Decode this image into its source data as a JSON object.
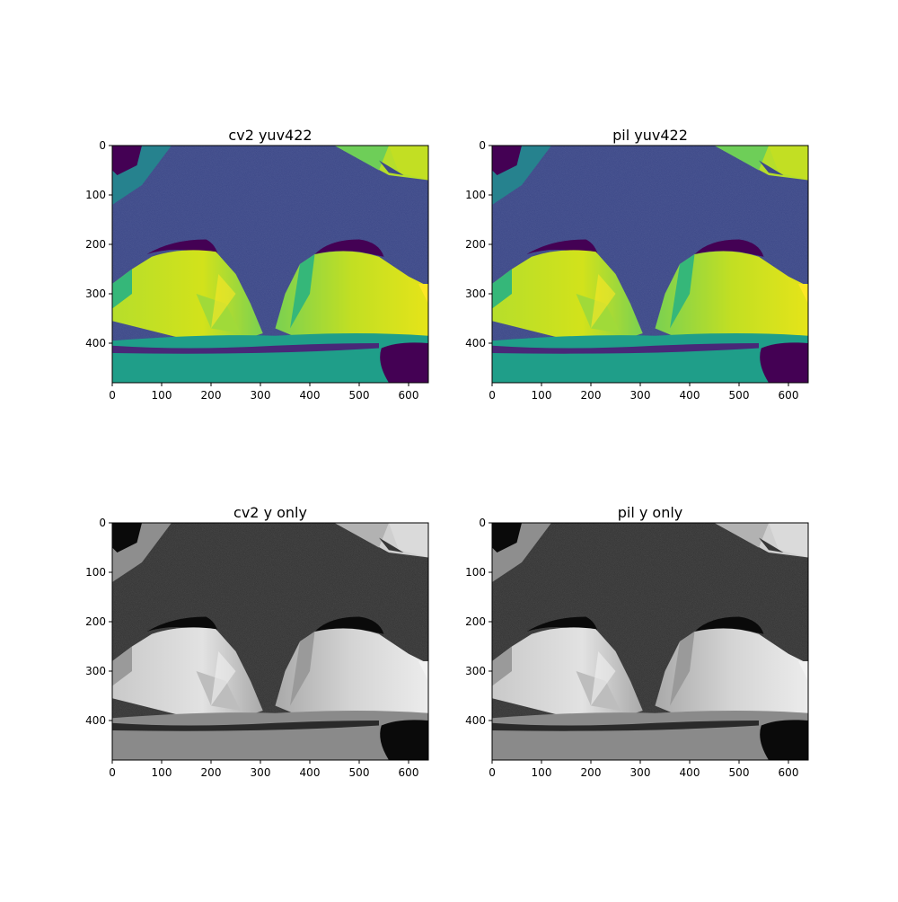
{
  "figure": {
    "panels": [
      {
        "title": "cv2 yuv422",
        "colormap": "viridis"
      },
      {
        "title": "pil yuv422",
        "colormap": "viridis"
      },
      {
        "title": "cv2 y only",
        "colormap": "gray"
      },
      {
        "title": "pil y only",
        "colormap": "gray"
      }
    ],
    "xticks": [
      0,
      100,
      200,
      300,
      400,
      500,
      600
    ],
    "yticks": [
      0,
      100,
      200,
      300,
      400
    ],
    "image_width": 640,
    "image_height": 480
  }
}
